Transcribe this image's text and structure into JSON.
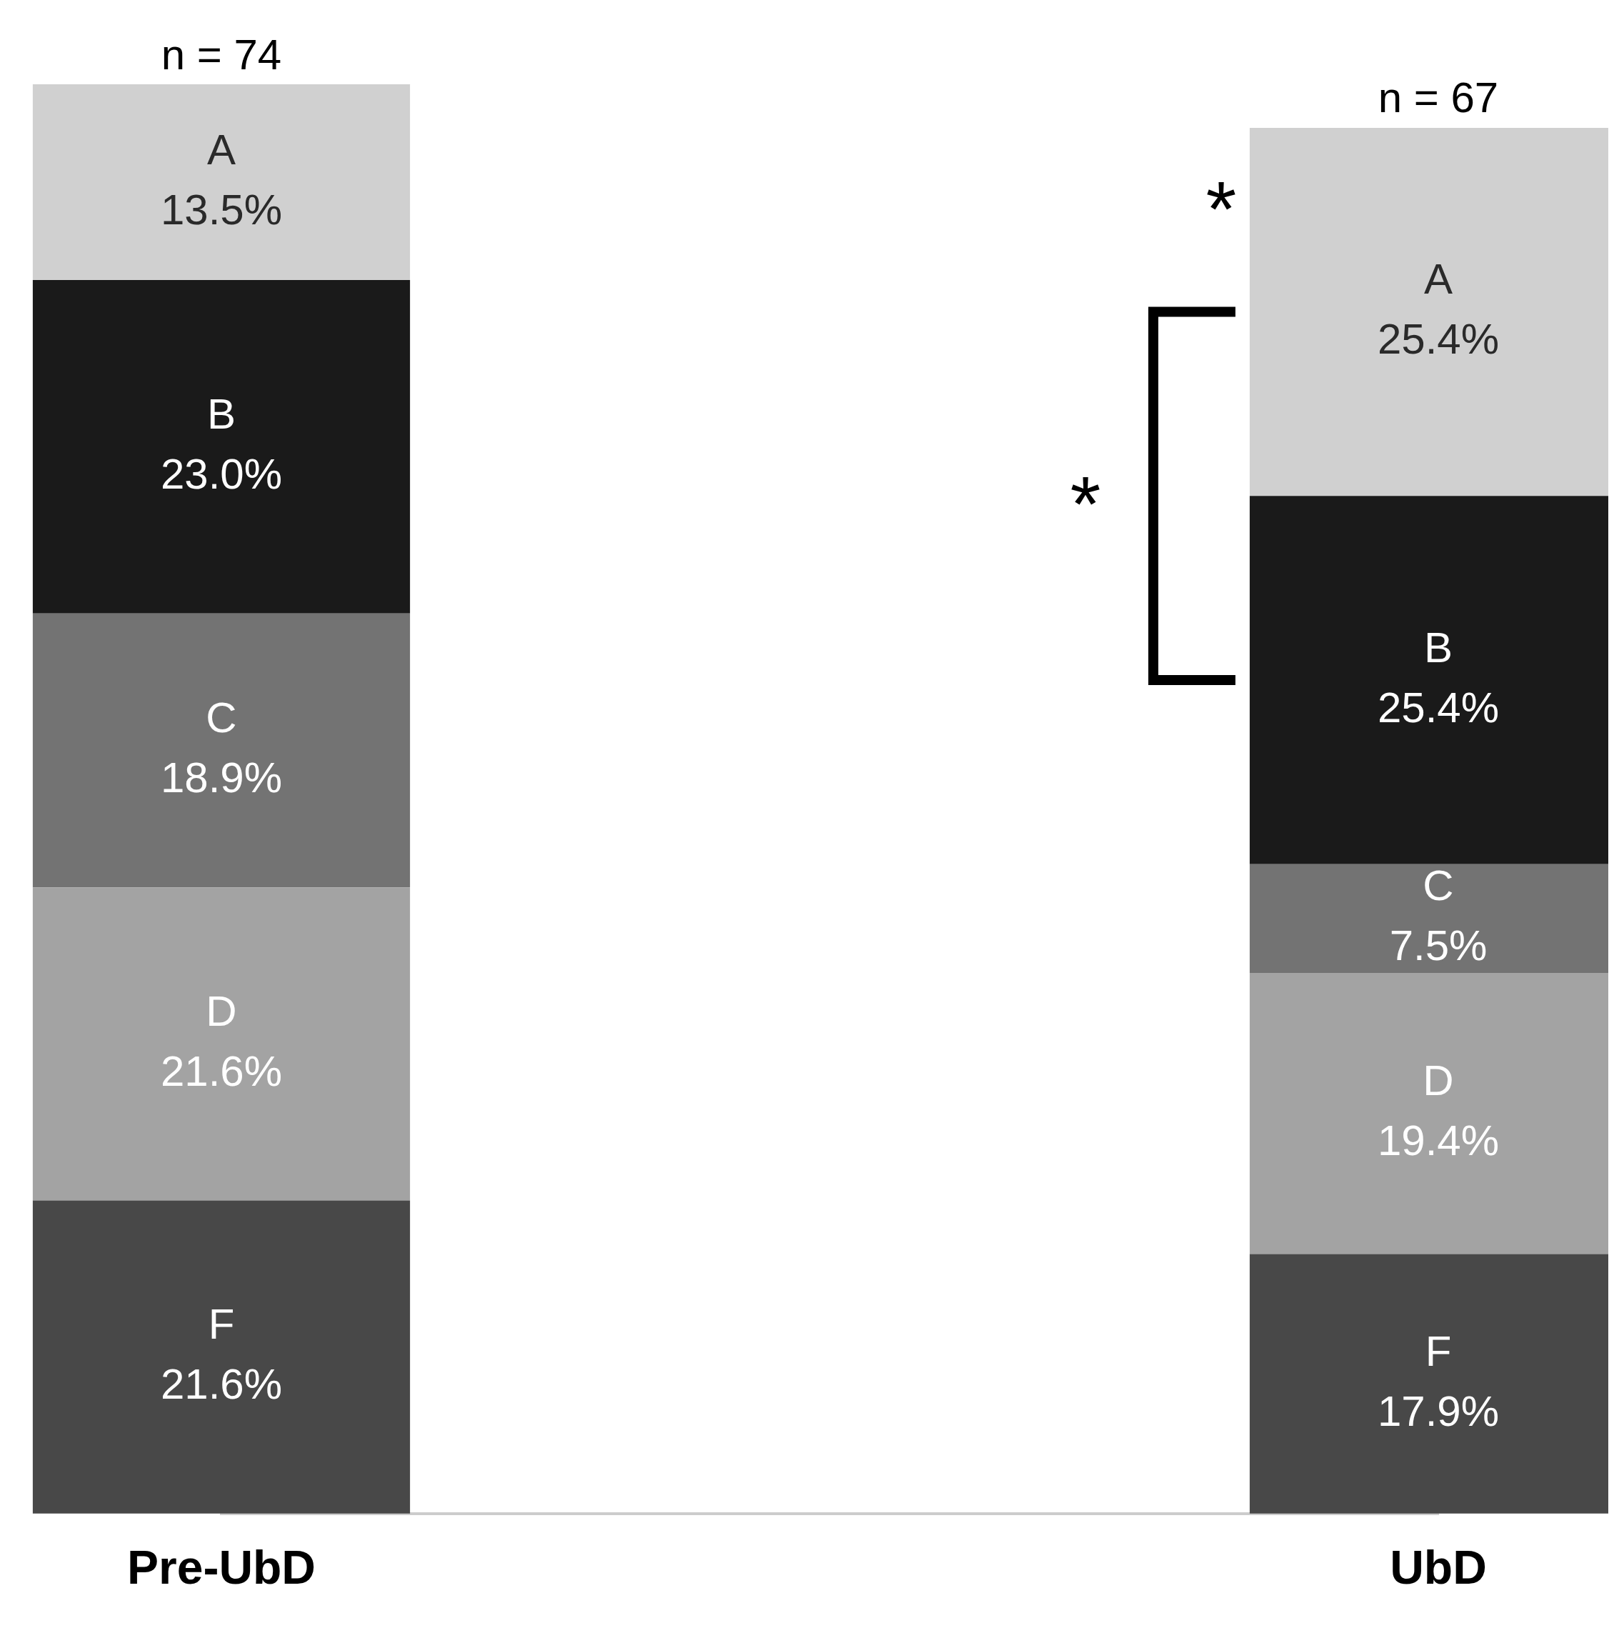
{
  "chart_data": {
    "type": "bar",
    "stacked": true,
    "categories": [
      "Pre-UbD",
      "UbD"
    ],
    "series": [
      {
        "name": "F",
        "color": "#484848",
        "values": [
          21.6,
          17.9
        ],
        "value_labels": [
          "21.6%",
          "17.9%"
        ]
      },
      {
        "name": "D",
        "color": "#a3a3a3",
        "values": [
          21.6,
          19.4
        ],
        "value_labels": [
          "21.6%",
          "19.4%"
        ]
      },
      {
        "name": "C",
        "color": "#737373",
        "values": [
          18.9,
          7.5
        ],
        "value_labels": [
          "18.9%",
          "7.5%"
        ]
      },
      {
        "name": "B",
        "color": "#1a1a1a",
        "values": [
          23.0,
          25.4
        ],
        "value_labels": [
          "23.0%",
          "25.4%"
        ]
      },
      {
        "name": "A",
        "color": "#d0d0d0",
        "values": [
          13.5,
          25.4
        ],
        "value_labels": [
          "13.5%",
          "25.4%"
        ]
      }
    ],
    "annotations": [
      "n = 74",
      "n = 67",
      "*",
      "*"
    ],
    "tick_labels": "x",
    "grid": false,
    "legend": false
  }
}
